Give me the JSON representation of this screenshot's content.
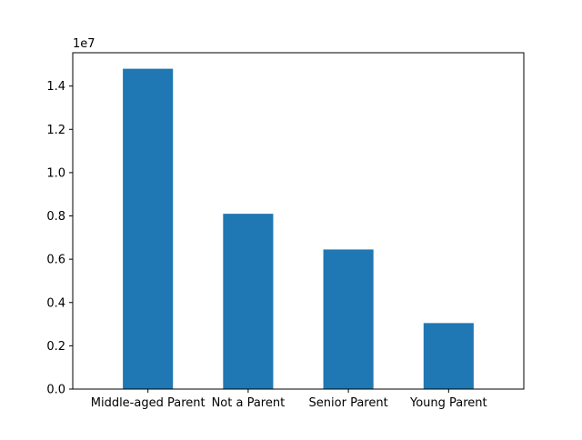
{
  "chart_data": {
    "type": "bar",
    "title": "",
    "xlabel": "",
    "ylabel": "",
    "y_scale_label": "1e7",
    "categories": [
      "Middle-aged Parent",
      "Not a Parent",
      "Senior Parent",
      "Young Parent"
    ],
    "values": [
      14800000,
      8100000,
      6450000,
      3050000
    ],
    "ylim": [
      0,
      15540000
    ],
    "y_ticks": [
      0,
      2000000,
      4000000,
      6000000,
      8000000,
      10000000,
      12000000,
      14000000
    ],
    "y_tick_labels": [
      "0.0",
      "0.2",
      "0.4",
      "0.6",
      "0.8",
      "1.0",
      "1.2",
      "1.4"
    ],
    "bar_color": "#1f77b4",
    "grid": false,
    "legend": "none"
  }
}
